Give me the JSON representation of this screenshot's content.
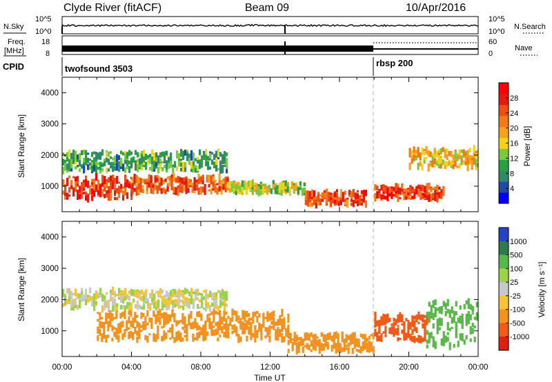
{
  "header": {
    "station": "Clyde River (fitACF)",
    "beam": "Beam 09",
    "date": "10/Apr/2016"
  },
  "strips": {
    "nsky_label": "N.Sky",
    "nsky_ticks": [
      "10^5",
      "10^0"
    ],
    "nsearch_label": "N.Search",
    "nsearch_ticks": [
      "10^5",
      "10^0"
    ],
    "freq_label": "Freq.",
    "freq_unit": "[MHz]",
    "freq_ticks": [
      "18",
      "8"
    ],
    "nave_label": "Nave",
    "nave_ticks": [
      "60",
      "0"
    ],
    "cpid_label": "CPID",
    "modes": [
      {
        "name": "twofsound 3503",
        "start_hour": 0
      },
      {
        "name": "rbsp 200",
        "start_hour": 18
      }
    ]
  },
  "x_axis": {
    "label": "Time UT",
    "ticks": [
      "00:00",
      "04:00",
      "08:00",
      "12:00",
      "16:00",
      "20:00",
      "00:00"
    ],
    "range_hours": [
      0,
      24
    ]
  },
  "chart_data": [
    {
      "type": "heatmap",
      "name": "power",
      "ylabel": "Slant Range [km]",
      "yticks": [
        1000,
        2000,
        3000,
        4000
      ],
      "ylim": [
        180,
        4500
      ],
      "colorbar": {
        "label": "Power [dB]",
        "ticks": [
          4,
          8,
          12,
          16,
          20,
          24,
          28
        ],
        "range": [
          0,
          32
        ],
        "colors": [
          "#0000ff",
          "#1f4aa8",
          "#2f8a6a",
          "#2a9f44",
          "#7ac943",
          "#f4d21c",
          "#f7a21e",
          "#f07a1a",
          "#ee4f17",
          "#e21b13",
          "#ff0000"
        ]
      },
      "bands": [
        {
          "hours": [
            0,
            4
          ],
          "range_km": [
            600,
            1300
          ],
          "value": 27
        },
        {
          "hours": [
            4,
            9.5
          ],
          "range_km": [
            800,
            1300
          ],
          "value": 24
        },
        {
          "hours": [
            0,
            9.5
          ],
          "range_km": [
            1500,
            2100
          ],
          "value": 10
        },
        {
          "hours": [
            9.5,
            14
          ],
          "range_km": [
            800,
            1100
          ],
          "value": 14
        },
        {
          "hours": [
            14,
            17.5
          ],
          "range_km": [
            400,
            800
          ],
          "value": 25
        },
        {
          "hours": [
            18,
            22
          ],
          "range_km": [
            600,
            1000
          ],
          "value": 27
        },
        {
          "hours": [
            20,
            24
          ],
          "range_km": [
            1600,
            2200
          ],
          "value": 18
        }
      ]
    },
    {
      "type": "heatmap",
      "name": "velocity",
      "ylabel": "Slant Range [km]",
      "yticks": [
        1000,
        2000,
        3000,
        4000
      ],
      "ylim": [
        180,
        4500
      ],
      "colorbar": {
        "label": "Velocity [m s⁻¹]",
        "ticks": [
          1000,
          500,
          100,
          25,
          -25,
          -100,
          -500,
          -1000
        ],
        "colors": [
          "#2742c0",
          "#2d7a4e",
          "#59b84a",
          "#9ad24b",
          "#c8c8c8",
          "#f4c43a",
          "#f49220",
          "#ef5b18",
          "#e01e12"
        ]
      },
      "bands": [
        {
          "hours": [
            0,
            9.5
          ],
          "range_km": [
            1700,
            2300
          ],
          "value": 0
        },
        {
          "hours": [
            2,
            13
          ],
          "range_km": [
            700,
            1600
          ],
          "value": -200
        },
        {
          "hours": [
            13,
            18
          ],
          "range_km": [
            350,
            900
          ],
          "value": -180
        },
        {
          "hours": [
            18,
            21
          ],
          "range_km": [
            700,
            1500
          ],
          "value": -600
        },
        {
          "hours": [
            21,
            24
          ],
          "range_km": [
            500,
            2000
          ],
          "value": 300
        }
      ]
    }
  ]
}
